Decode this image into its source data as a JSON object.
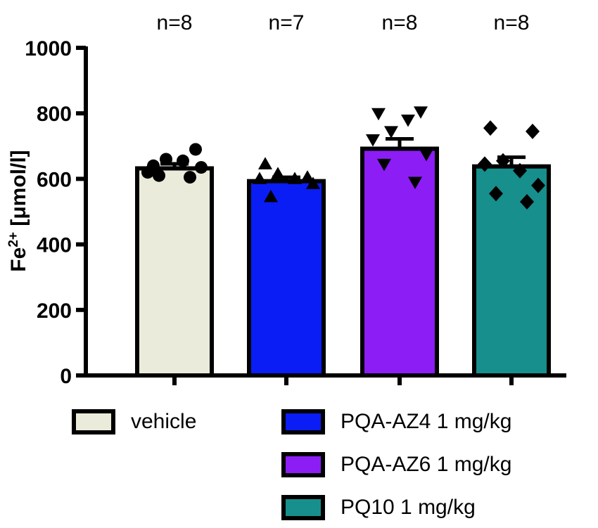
{
  "chart_data": {
    "type": "bar",
    "title": "",
    "xlabel": "",
    "ylabel": "Fe",
    "ylabel_superscript": "2+",
    "ylabel_unit": " [μmol/l]",
    "ylim": [
      0,
      1000
    ],
    "yticks": [
      "0",
      "200",
      "400",
      "600",
      "800",
      "1000"
    ],
    "categories": [
      "vehicle",
      "PQA-AZ4 1 mg/kg",
      "PQA-AZ6 1 mg/kg",
      "PQ10 1 mg/kg"
    ],
    "values": [
      632,
      593,
      692,
      638
    ],
    "sem": [
      14,
      12,
      30,
      28
    ],
    "n_labels": [
      "n=8",
      "n=7",
      "n=8",
      "n=8"
    ],
    "colors": [
      "#ebebdb",
      "#0a1df5",
      "#8c1df5",
      "#178f8c"
    ],
    "markers": [
      "circle",
      "triangle",
      "triangle-down",
      "diamond"
    ],
    "points": [
      [
        640,
        690,
        660,
        655,
        620,
        635,
        610,
        605
      ],
      [
        645,
        605,
        615,
        600,
        600,
        585,
        545
      ],
      [
        800,
        805,
        745,
        780,
        720,
        675,
        645,
        590
      ],
      [
        755,
        745,
        655,
        625,
        645,
        580,
        555,
        530
      ]
    ],
    "legend": [
      "vehicle",
      "PQA-AZ4 1 mg/kg",
      "PQA-AZ6 1 mg/kg",
      "PQ10 1 mg/kg"
    ]
  }
}
